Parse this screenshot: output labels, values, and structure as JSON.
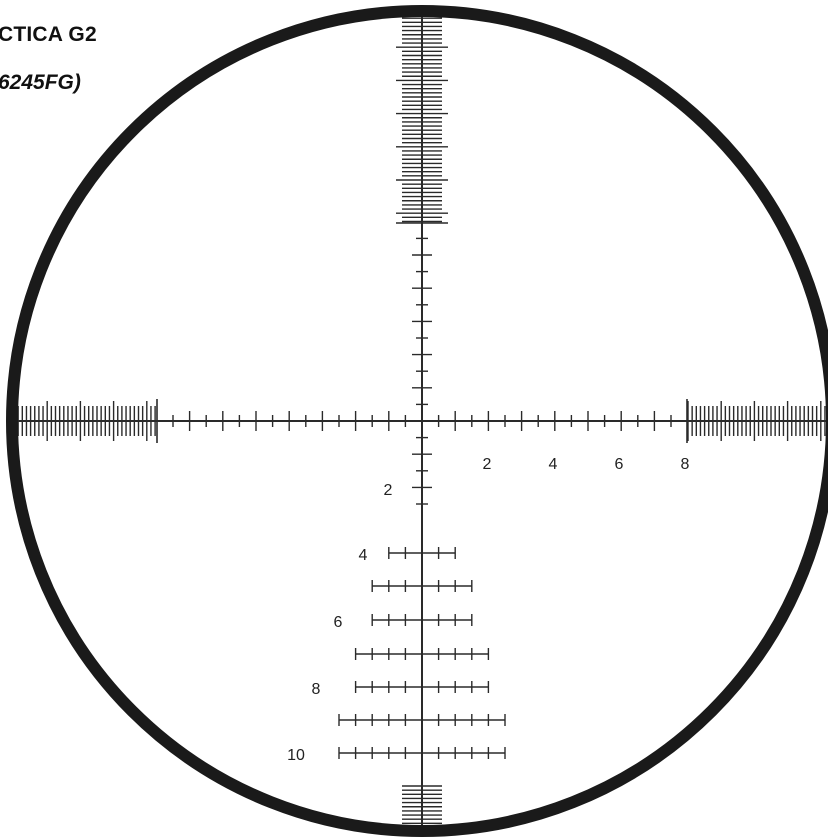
{
  "title": {
    "line1": "CTICA G2",
    "line2": "6245FG)"
  },
  "horizontal_labels": [
    "2",
    "4",
    "6",
    "8"
  ],
  "vertical_labels": [
    "2",
    "4",
    "6",
    "8",
    "10"
  ],
  "colors": {
    "ring": "#1a1a1a",
    "lines": "#2a2a2a",
    "labels": "#222222",
    "background": "#ffffff"
  }
}
